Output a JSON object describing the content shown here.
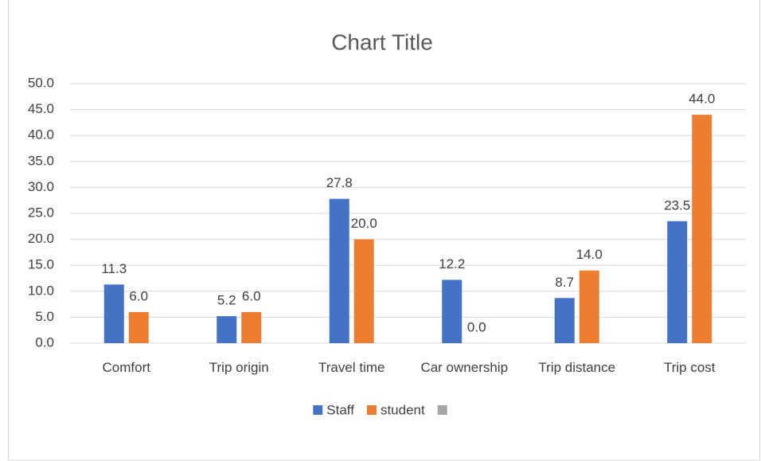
{
  "chart_data": {
    "type": "bar",
    "title": "Chart Title",
    "categories": [
      "Comfort",
      "Trip origin",
      "Travel time",
      "Car ownership",
      "Trip distance",
      "Trip cost"
    ],
    "series": [
      {
        "name": "Staff",
        "color": "#4472c4",
        "values": [
          11.3,
          5.2,
          27.8,
          12.2,
          8.7,
          23.5
        ],
        "value_labels": [
          "11.3",
          "5.2",
          "27.8",
          "12.2",
          "8.7",
          "23.5"
        ]
      },
      {
        "name": "student",
        "color": "#ed7d31",
        "values": [
          6,
          6,
          20,
          0,
          14,
          44
        ],
        "value_labels": [
          "6.0",
          "6.0",
          "20.0",
          "0.0",
          "14.0",
          "44.0"
        ]
      },
      {
        "color": "#a5a5a5",
        "values": [
          null,
          null,
          null,
          null,
          null,
          null
        ]
      }
    ],
    "ylim": [
      0,
      50
    ],
    "yticks": [
      {
        "value": 0,
        "label": "0.0"
      },
      {
        "value": 5,
        "label": "5.0"
      },
      {
        "value": 10,
        "label": "10.0"
      },
      {
        "value": 15,
        "label": "15.0"
      },
      {
        "value": 20,
        "label": "20.0"
      },
      {
        "value": 25,
        "label": "25.0"
      },
      {
        "value": 30,
        "label": "30.0"
      },
      {
        "value": 35,
        "label": "35.0"
      },
      {
        "value": 40,
        "label": "40.0"
      },
      {
        "value": 45,
        "label": "45.0"
      },
      {
        "value": 50,
        "label": "50.0"
      }
    ],
    "grid": true,
    "legend": "bottom"
  }
}
